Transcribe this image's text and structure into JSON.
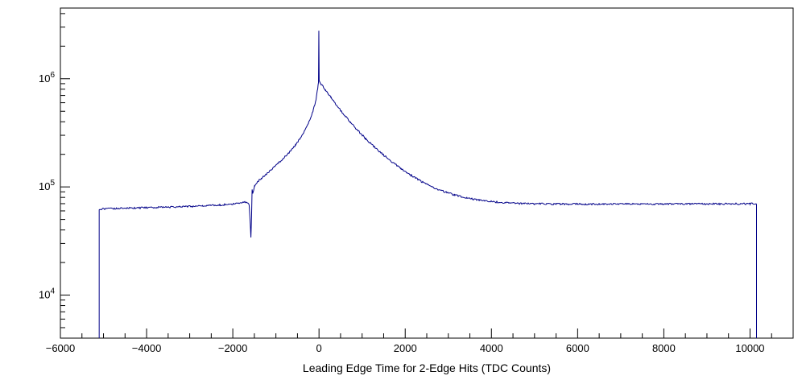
{
  "chart_data": {
    "type": "line",
    "subtype": "histogram-step",
    "title": "",
    "xlabel": "Leading Edge Time for 2-Edge Hits (TDC Counts)",
    "ylabel": "",
    "x_range": [
      -6000,
      11000
    ],
    "y_range": [
      4000,
      4500000
    ],
    "y_scale": "log",
    "grid": false,
    "legend": "none",
    "line_color": "#000088",
    "frame_color": "#000000",
    "background_color": "#ffffff",
    "x_minor_step": 500,
    "x_ticks": [
      {
        "value": -6000,
        "label": "−6000"
      },
      {
        "value": -4000,
        "label": "−4000"
      },
      {
        "value": -2000,
        "label": "−2000"
      },
      {
        "value": 0,
        "label": "0"
      },
      {
        "value": 2000,
        "label": "2000"
      },
      {
        "value": 4000,
        "label": "4000"
      },
      {
        "value": 6000,
        "label": "6000"
      },
      {
        "value": 8000,
        "label": "8000"
      },
      {
        "value": 10000,
        "label": "10000"
      }
    ],
    "y_ticks": [
      {
        "value": 10000,
        "base": "10",
        "exp": "4"
      },
      {
        "value": 100000,
        "base": "10",
        "exp": "5"
      },
      {
        "value": 1000000,
        "base": "10",
        "exp": "6"
      }
    ],
    "points": [
      [
        -5100,
        62500
      ],
      [
        -4700,
        63200
      ],
      [
        -4300,
        63800
      ],
      [
        -3900,
        64400
      ],
      [
        -3500,
        65000
      ],
      [
        -3100,
        65700
      ],
      [
        -2700,
        66600
      ],
      [
        -2300,
        68000
      ],
      [
        -2000,
        69500
      ],
      [
        -1850,
        71000
      ],
      [
        -1750,
        72300
      ],
      [
        -1680,
        72600
      ],
      [
        -1620,
        68000
      ],
      [
        -1595,
        45000
      ],
      [
        -1580,
        33500
      ],
      [
        -1565,
        52000
      ],
      [
        -1552,
        96000
      ],
      [
        -1535,
        87000
      ],
      [
        -1515,
        93000
      ],
      [
        -1495,
        101000
      ],
      [
        -1440,
        110000
      ],
      [
        -1340,
        120000
      ],
      [
        -1240,
        130000
      ],
      [
        -1140,
        141000
      ],
      [
        -1040,
        153000
      ],
      [
        -940,
        166000
      ],
      [
        -840,
        181000
      ],
      [
        -740,
        199000
      ],
      [
        -640,
        220000
      ],
      [
        -540,
        246000
      ],
      [
        -440,
        280000
      ],
      [
        -340,
        326000
      ],
      [
        -240,
        392000
      ],
      [
        -140,
        500000
      ],
      [
        -70,
        640000
      ],
      [
        -30,
        820000
      ],
      [
        -12,
        940000
      ],
      [
        -4,
        2800000
      ],
      [
        4,
        950000
      ],
      [
        60,
        880000
      ],
      [
        150,
        790000
      ],
      [
        280,
        670000
      ],
      [
        420,
        560000
      ],
      [
        570,
        470000
      ],
      [
        730,
        395000
      ],
      [
        900,
        332000
      ],
      [
        1080,
        280000
      ],
      [
        1270,
        237000
      ],
      [
        1470,
        201000
      ],
      [
        1680,
        172000
      ],
      [
        1900,
        148000
      ],
      [
        2130,
        128500
      ],
      [
        2370,
        112500
      ],
      [
        2620,
        100000
      ],
      [
        2880,
        91000
      ],
      [
        3150,
        84000
      ],
      [
        3430,
        79000
      ],
      [
        3720,
        75500
      ],
      [
        4020,
        73000
      ],
      [
        4330,
        71300
      ],
      [
        4650,
        70300
      ],
      [
        5000,
        69800
      ],
      [
        5500,
        69400
      ],
      [
        6000,
        69300
      ],
      [
        7000,
        69300
      ],
      [
        8000,
        69400
      ],
      [
        9000,
        69500
      ],
      [
        10000,
        69800
      ],
      [
        10150,
        70000
      ]
    ]
  }
}
